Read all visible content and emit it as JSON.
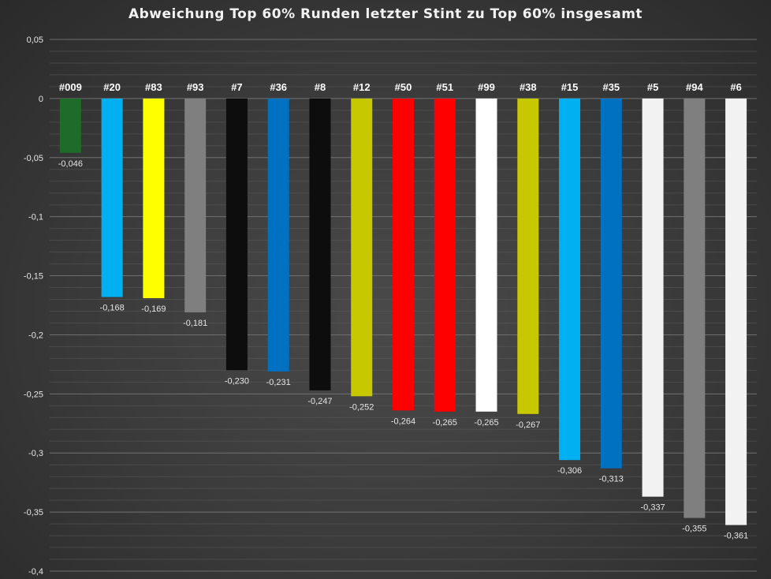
{
  "chart_data": {
    "type": "bar",
    "title": "Abweichung Top 60% Runden letzter Stint zu Top 60% insgesamt",
    "xlabel": "",
    "ylabel": "",
    "ylim": [
      -0.4,
      0.05
    ],
    "yticks": [
      "0,05",
      "0",
      "-0,05",
      "-0,1",
      "-0,15",
      "-0,2",
      "-0,25",
      "-0,3",
      "-0,35",
      "-0,4"
    ],
    "ytick_values": [
      0.05,
      0,
      -0.05,
      -0.1,
      -0.15,
      -0.2,
      -0.25,
      -0.3,
      -0.35,
      -0.4
    ],
    "grid": true,
    "categories": [
      "#009",
      "#20",
      "#83",
      "#93",
      "#7",
      "#36",
      "#8",
      "#12",
      "#50",
      "#51",
      "#99",
      "#38",
      "#15",
      "#35",
      "#5",
      "#94",
      "#6"
    ],
    "values": [
      -0.046,
      -0.168,
      -0.169,
      -0.181,
      -0.23,
      -0.231,
      -0.247,
      -0.252,
      -0.264,
      -0.265,
      -0.265,
      -0.267,
      -0.306,
      -0.313,
      -0.337,
      -0.355,
      -0.361
    ],
    "value_labels": [
      "-0,046",
      "-0,168",
      "-0,169",
      "-0,181",
      "-0,230",
      "-0,231",
      "-0,247",
      "-0,252",
      "-0,264",
      "-0,265",
      "-0,265",
      "-0,267",
      "-0,306",
      "-0,313",
      "-0,337",
      "-0,355",
      "-0,361"
    ],
    "colors": [
      "#1f6b2a",
      "#00b0f0",
      "#ffff00",
      "#7f7f7f",
      "#0d0d0d",
      "#0070c0",
      "#0d0d0d",
      "#c8c800",
      "#ff0000",
      "#ff0000",
      "#ffffff",
      "#c8c800",
      "#00b0f0",
      "#0070c0",
      "#f2f2f2",
      "#7f7f7f",
      "#f2f2f2"
    ]
  }
}
